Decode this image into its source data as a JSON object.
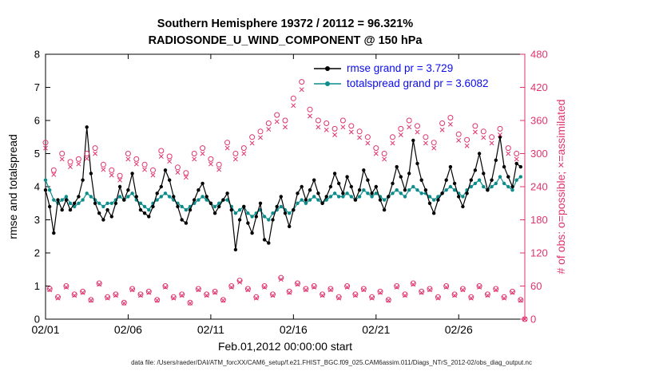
{
  "title": {
    "line1": "Southern Hemisphere 19372 / 20112 = 96.321%",
    "line2": "RADIOSONDE_U_WIND_COMPONENT @ 150 hPa"
  },
  "footer": {
    "data_file": "data file: /Users/raeder/DAI/ATM_forcXX/CAM6_setup/f.e21.FHIST_BGC.f09_025.CAM6assim.011/Diags_NTrS_2012-02/obs_diag_output.nc"
  },
  "legend": {
    "items": [
      {
        "label": "rmse grand pr = 3.729",
        "color": "#000000"
      },
      {
        "label": "totalspread grand pr = 3.6082",
        "color": "#0d8c8c"
      }
    ]
  },
  "colors": {
    "axis": "#000000",
    "magenta": "#e0336e",
    "teal": "#0d8c8c",
    "legend_text": "#0b0bee",
    "background": "#ffffff"
  },
  "chart_data": {
    "type": "line",
    "title": "Southern Hemisphere 19372 / 20112 = 96.321%",
    "subtitle": "RADIOSONDE_U_WIND_COMPONENT @ 150 hPa",
    "x_start": "2012-02-01 00:00:00",
    "x_step_hours": 6,
    "x_span_days": 29,
    "grid": false,
    "legend_position": "top-center-inside",
    "x_axis": {
      "label": "Feb.01,2012 00:00:00 start",
      "ticks": [
        {
          "day": 0,
          "label": "02/01"
        },
        {
          "day": 5,
          "label": "02/06"
        },
        {
          "day": 10,
          "label": "02/11"
        },
        {
          "day": 15,
          "label": "02/16"
        },
        {
          "day": 20,
          "label": "02/21"
        },
        {
          "day": 25,
          "label": "02/26"
        }
      ]
    },
    "y_left": {
      "label": "rmse and totalspread",
      "min": 0,
      "max": 8,
      "ticks": [
        0,
        1,
        2,
        3,
        4,
        5,
        6,
        7,
        8
      ],
      "color": "#000000"
    },
    "y_right": {
      "label": "# of obs: o=possible; ×=assimilated",
      "min": 0,
      "max": 480,
      "ticks": [
        0,
        60,
        120,
        180,
        240,
        300,
        360,
        420,
        480
      ],
      "color": "#e0336e"
    },
    "series": [
      {
        "name": "rmse",
        "axis": "left",
        "color": "#000000",
        "grand_mean": 3.729,
        "values": [
          3.9,
          3.4,
          2.6,
          3.6,
          3.3,
          3.6,
          3.3,
          3.5,
          3.7,
          4.2,
          5.8,
          4.4,
          3.5,
          3.2,
          3.0,
          3.3,
          3.1,
          3.5,
          4.0,
          3.6,
          3.9,
          4.4,
          3.7,
          3.3,
          3.2,
          3.1,
          3.4,
          3.8,
          4.0,
          4.5,
          4.2,
          3.7,
          3.4,
          3.0,
          2.9,
          3.3,
          3.6,
          3.9,
          4.1,
          3.7,
          3.5,
          3.2,
          3.4,
          3.6,
          3.8,
          3.3,
          2.1,
          3.0,
          3.4,
          2.9,
          2.6,
          3.1,
          3.5,
          2.4,
          2.3,
          3.0,
          3.4,
          3.7,
          3.2,
          2.8,
          3.3,
          3.8,
          4.0,
          3.6,
          3.9,
          4.2,
          3.8,
          3.5,
          3.7,
          4.0,
          4.4,
          4.1,
          3.8,
          4.3,
          4.0,
          3.6,
          3.9,
          4.5,
          4.2,
          3.8,
          4.0,
          3.6,
          3.3,
          3.7,
          4.1,
          4.6,
          4.3,
          3.9,
          4.4,
          5.4,
          4.7,
          4.2,
          3.9,
          3.5,
          3.2,
          3.6,
          3.8,
          4.2,
          4.6,
          4.1,
          3.7,
          3.4,
          3.8,
          4.2,
          4.5,
          5.0,
          4.4,
          3.9,
          4.2,
          4.8,
          5.5,
          4.6,
          4.3,
          4.0,
          4.7,
          4.6
        ]
      },
      {
        "name": "totalspread",
        "axis": "left",
        "color": "#0d8c8c",
        "grand_mean": 3.6082,
        "values": [
          4.2,
          3.9,
          3.6,
          3.5,
          3.6,
          3.7,
          3.5,
          3.4,
          3.5,
          3.6,
          3.8,
          3.7,
          3.6,
          3.5,
          3.4,
          3.5,
          3.5,
          3.6,
          3.7,
          3.6,
          3.7,
          3.8,
          3.6,
          3.5,
          3.4,
          3.3,
          3.5,
          3.6,
          3.7,
          3.8,
          3.7,
          3.6,
          3.5,
          3.4,
          3.3,
          3.4,
          3.5,
          3.6,
          3.7,
          3.6,
          3.5,
          3.4,
          3.5,
          3.6,
          3.6,
          3.4,
          3.2,
          3.3,
          3.4,
          3.2,
          3.1,
          3.2,
          3.3,
          3.1,
          3.0,
          3.2,
          3.3,
          3.4,
          3.3,
          3.2,
          3.3,
          3.5,
          3.6,
          3.5,
          3.6,
          3.7,
          3.6,
          3.5,
          3.6,
          3.7,
          3.8,
          3.7,
          3.7,
          3.8,
          3.7,
          3.6,
          3.7,
          3.9,
          3.8,
          3.7,
          3.8,
          3.7,
          3.6,
          3.7,
          3.8,
          3.9,
          3.8,
          3.7,
          3.9,
          4.0,
          3.9,
          3.8,
          3.8,
          3.7,
          3.6,
          3.7,
          3.8,
          3.9,
          4.0,
          3.9,
          3.8,
          3.7,
          3.9,
          4.0,
          4.1,
          4.2,
          4.0,
          3.9,
          4.0,
          4.1,
          4.3,
          4.1,
          4.0,
          3.9,
          4.2,
          4.3
        ]
      }
    ],
    "obs_series": [
      {
        "name": "possible",
        "marker": "o",
        "axis": "right",
        "values": [
          320,
          55,
          270,
          40,
          300,
          60,
          285,
          45,
          290,
          50,
          300,
          35,
          310,
          65,
          280,
          40,
          270,
          45,
          260,
          30,
          300,
          55,
          290,
          45,
          280,
          50,
          270,
          35,
          305,
          60,
          295,
          40,
          275,
          45,
          265,
          30,
          300,
          55,
          310,
          45,
          290,
          50,
          280,
          35,
          320,
          60,
          300,
          70,
          310,
          55,
          330,
          40,
          340,
          60,
          355,
          45,
          370,
          75,
          360,
          50,
          400,
          65,
          430,
          55,
          380,
          60,
          360,
          45,
          355,
          55,
          345,
          40,
          360,
          60,
          350,
          45,
          340,
          55,
          330,
          40,
          310,
          50,
          300,
          35,
          330,
          60,
          345,
          45,
          360,
          65,
          350,
          50,
          330,
          55,
          320,
          40,
          355,
          60,
          365,
          45,
          335,
          55,
          325,
          40,
          350,
          60,
          340,
          45,
          330,
          55,
          345,
          40,
          310,
          50,
          300,
          35,
          0
        ]
      },
      {
        "name": "assimilated",
        "marker": "x",
        "axis": "right",
        "values": [
          310,
          53,
          262,
          38,
          290,
          58,
          276,
          43,
          281,
          48,
          291,
          34,
          300,
          63,
          271,
          38,
          261,
          43,
          252,
          29,
          290,
          53,
          281,
          43,
          271,
          48,
          261,
          34,
          295,
          58,
          286,
          38,
          266,
          43,
          257,
          29,
          290,
          53,
          300,
          43,
          281,
          48,
          271,
          34,
          310,
          58,
          290,
          67,
          300,
          53,
          319,
          38,
          329,
          58,
          344,
          43,
          358,
          72,
          348,
          48,
          387,
          63,
          416,
          53,
          368,
          58,
          348,
          43,
          343,
          53,
          334,
          38,
          348,
          58,
          339,
          43,
          329,
          53,
          319,
          38,
          300,
          48,
          290,
          34,
          319,
          58,
          334,
          43,
          348,
          63,
          339,
          48,
          319,
          53,
          310,
          38,
          343,
          58,
          353,
          43,
          324,
          53,
          314,
          38,
          339,
          58,
          329,
          43,
          319,
          53,
          334,
          38,
          300,
          48,
          290,
          34,
          0
        ]
      }
    ]
  }
}
